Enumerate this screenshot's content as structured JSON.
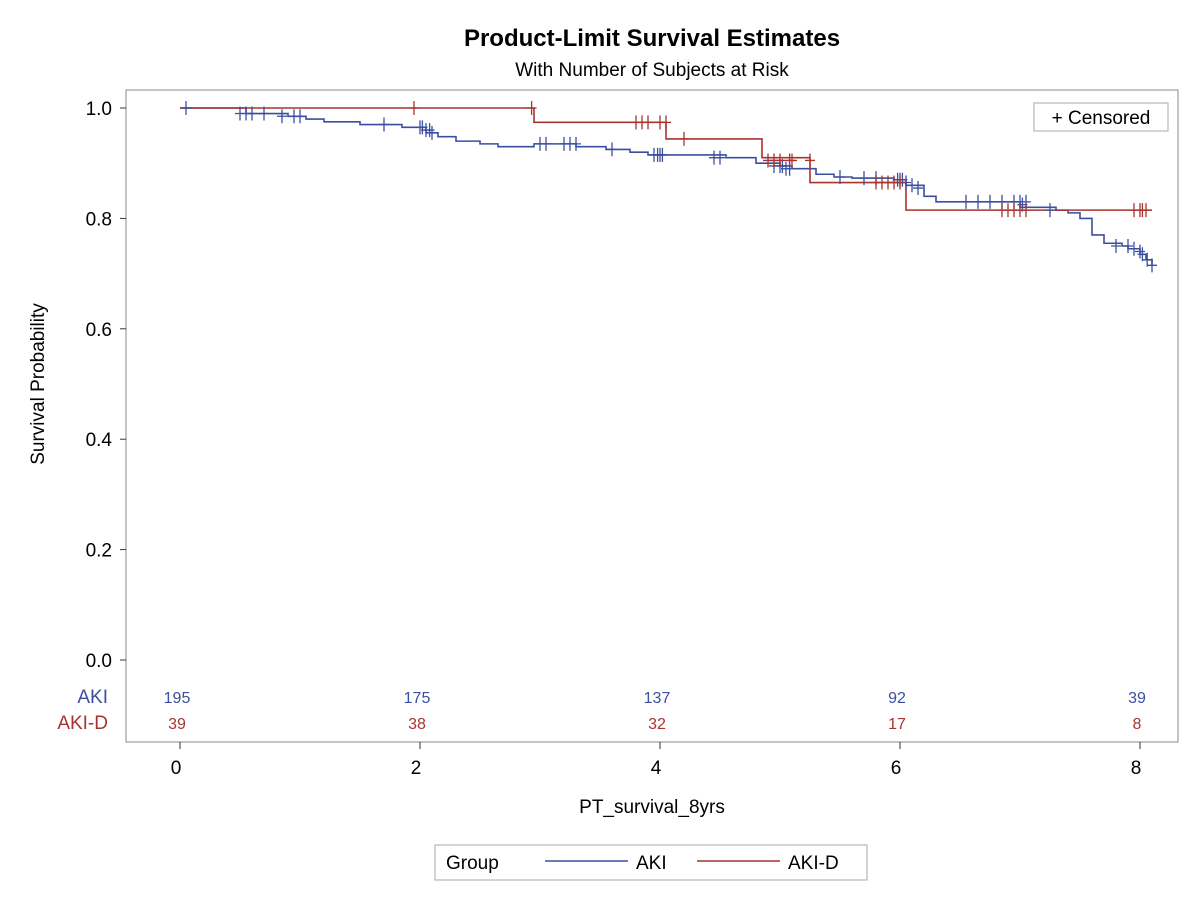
{
  "chart_data": {
    "type": "line",
    "title": "Product-Limit Survival Estimates",
    "subtitle": "With Number of Subjects at Risk",
    "xlabel": "PT_survival_8yrs",
    "ylabel": "Survival Probability",
    "xlim": [
      -0.4,
      8.2
    ],
    "ylim": [
      0,
      1
    ],
    "x_ticks": [
      0,
      2,
      4,
      6,
      8
    ],
    "y_ticks": [
      0,
      0.2,
      0.4,
      0.6,
      0.8,
      1.0
    ],
    "x_tick_labels": [
      "0",
      "2",
      "4",
      "6",
      "8"
    ],
    "y_tick_labels": [
      "0.0",
      "0.2",
      "0.4",
      "0.6",
      "0.8",
      "1.0"
    ],
    "censor_legend": "+ Censored",
    "legend_title": "Group",
    "legend_position": "bottom",
    "series": [
      {
        "name": "AKI",
        "color": "#3b4fa0",
        "steps": [
          [
            0,
            1.0
          ],
          [
            0.55,
            0.99
          ],
          [
            0.9,
            0.985
          ],
          [
            1.05,
            0.98
          ],
          [
            1.2,
            0.975
          ],
          [
            1.5,
            0.97
          ],
          [
            1.85,
            0.965
          ],
          [
            2.05,
            0.955
          ],
          [
            2.15,
            0.948
          ],
          [
            2.3,
            0.94
          ],
          [
            2.5,
            0.935
          ],
          [
            2.65,
            0.93
          ],
          [
            2.95,
            0.935
          ],
          [
            3.3,
            0.93
          ],
          [
            3.55,
            0.925
          ],
          [
            3.75,
            0.92
          ],
          [
            3.9,
            0.915
          ],
          [
            4.55,
            0.91
          ],
          [
            4.8,
            0.9
          ],
          [
            5.0,
            0.895
          ],
          [
            5.1,
            0.89
          ],
          [
            5.3,
            0.88
          ],
          [
            5.45,
            0.875
          ],
          [
            5.6,
            0.873
          ],
          [
            5.95,
            0.87
          ],
          [
            6.05,
            0.86
          ],
          [
            6.2,
            0.84
          ],
          [
            6.3,
            0.83
          ],
          [
            7.0,
            0.82
          ],
          [
            7.3,
            0.815
          ],
          [
            7.4,
            0.81
          ],
          [
            7.5,
            0.8
          ],
          [
            7.6,
            0.77
          ],
          [
            7.7,
            0.755
          ],
          [
            7.85,
            0.75
          ],
          [
            7.9,
            0.745
          ],
          [
            8.0,
            0.735
          ],
          [
            8.05,
            0.725
          ],
          [
            8.1,
            0.715
          ]
        ],
        "censored": [
          [
            0.05,
            1.0
          ],
          [
            0.5,
            0.99
          ],
          [
            0.55,
            0.99
          ],
          [
            0.6,
            0.99
          ],
          [
            0.7,
            0.99
          ],
          [
            0.85,
            0.985
          ],
          [
            0.95,
            0.985
          ],
          [
            1.0,
            0.985
          ],
          [
            1.7,
            0.97
          ],
          [
            2.0,
            0.965
          ],
          [
            2.02,
            0.965
          ],
          [
            2.05,
            0.96
          ],
          [
            2.08,
            0.96
          ],
          [
            2.1,
            0.955
          ],
          [
            3.0,
            0.935
          ],
          [
            3.05,
            0.935
          ],
          [
            3.2,
            0.935
          ],
          [
            3.25,
            0.935
          ],
          [
            3.3,
            0.935
          ],
          [
            3.6,
            0.925
          ],
          [
            3.95,
            0.915
          ],
          [
            3.98,
            0.915
          ],
          [
            4.0,
            0.915
          ],
          [
            4.02,
            0.915
          ],
          [
            4.45,
            0.91
          ],
          [
            4.5,
            0.91
          ],
          [
            4.95,
            0.895
          ],
          [
            5.0,
            0.895
          ],
          [
            5.02,
            0.895
          ],
          [
            5.05,
            0.89
          ],
          [
            5.08,
            0.89
          ],
          [
            5.5,
            0.875
          ],
          [
            5.7,
            0.873
          ],
          [
            5.8,
            0.873
          ],
          [
            5.98,
            0.87
          ],
          [
            6.0,
            0.87
          ],
          [
            6.02,
            0.87
          ],
          [
            6.05,
            0.865
          ],
          [
            6.1,
            0.86
          ],
          [
            6.15,
            0.855
          ],
          [
            6.55,
            0.83
          ],
          [
            6.65,
            0.83
          ],
          [
            6.75,
            0.83
          ],
          [
            6.85,
            0.83
          ],
          [
            6.95,
            0.83
          ],
          [
            7.0,
            0.83
          ],
          [
            7.02,
            0.825
          ],
          [
            7.05,
            0.83
          ],
          [
            7.25,
            0.815
          ],
          [
            7.8,
            0.75
          ],
          [
            7.9,
            0.75
          ],
          [
            7.95,
            0.745
          ],
          [
            8.0,
            0.74
          ],
          [
            8.02,
            0.735
          ],
          [
            8.06,
            0.725
          ],
          [
            8.1,
            0.715
          ]
        ],
        "at_risk_label": "AKI",
        "at_risk": [
          195,
          175,
          137,
          92,
          39
        ]
      },
      {
        "name": "AKI-D",
        "color": "#a8342f",
        "steps": [
          [
            0,
            1.0
          ],
          [
            2.95,
            0.974
          ],
          [
            4.05,
            0.944
          ],
          [
            4.85,
            0.91
          ],
          [
            5.25,
            0.865
          ],
          [
            6.05,
            0.815
          ],
          [
            8.1,
            0.815
          ]
        ],
        "censored": [
          [
            1.95,
            1.0
          ],
          [
            2.93,
            1.0
          ],
          [
            3.8,
            0.974
          ],
          [
            3.85,
            0.974
          ],
          [
            3.9,
            0.974
          ],
          [
            4.0,
            0.974
          ],
          [
            4.05,
            0.974
          ],
          [
            4.2,
            0.944
          ],
          [
            4.9,
            0.905
          ],
          [
            4.95,
            0.905
          ],
          [
            5.0,
            0.905
          ],
          [
            5.08,
            0.905
          ],
          [
            5.1,
            0.905
          ],
          [
            5.25,
            0.905
          ],
          [
            5.8,
            0.865
          ],
          [
            5.85,
            0.865
          ],
          [
            5.9,
            0.865
          ],
          [
            5.95,
            0.865
          ],
          [
            6.0,
            0.865
          ],
          [
            6.85,
            0.815
          ],
          [
            6.9,
            0.815
          ],
          [
            6.95,
            0.815
          ],
          [
            7.0,
            0.815
          ],
          [
            7.05,
            0.815
          ],
          [
            7.95,
            0.815
          ],
          [
            8.0,
            0.815
          ],
          [
            8.02,
            0.815
          ],
          [
            8.05,
            0.815
          ]
        ],
        "at_risk_label": "AKI-D",
        "at_risk": [
          39,
          38,
          32,
          17,
          8
        ]
      }
    ]
  }
}
